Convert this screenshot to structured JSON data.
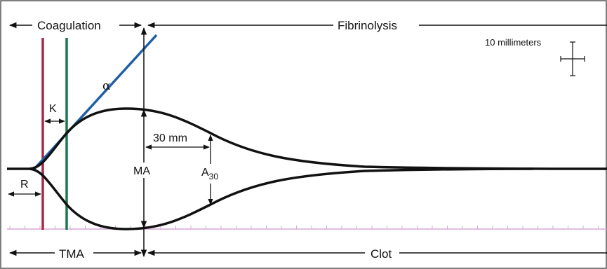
{
  "labels": {
    "coagulation": "Coagulation",
    "fibrinolysis": "Fibrinolysis",
    "scale": "10 millimeters",
    "alpha": "α",
    "k": "K",
    "thirty_mm": "30 mm",
    "ma": "MA",
    "a30_main": "A",
    "a30_sub": "30",
    "r": "R",
    "tma": "TMA",
    "clot": "Clot"
  },
  "colors": {
    "frame": "#555555",
    "curve": "#111111",
    "r_line": "#a8294a",
    "k_line": "#1a7a4c",
    "alpha_line": "#1f5fa8",
    "baseline": "#d8a8d8"
  }
}
